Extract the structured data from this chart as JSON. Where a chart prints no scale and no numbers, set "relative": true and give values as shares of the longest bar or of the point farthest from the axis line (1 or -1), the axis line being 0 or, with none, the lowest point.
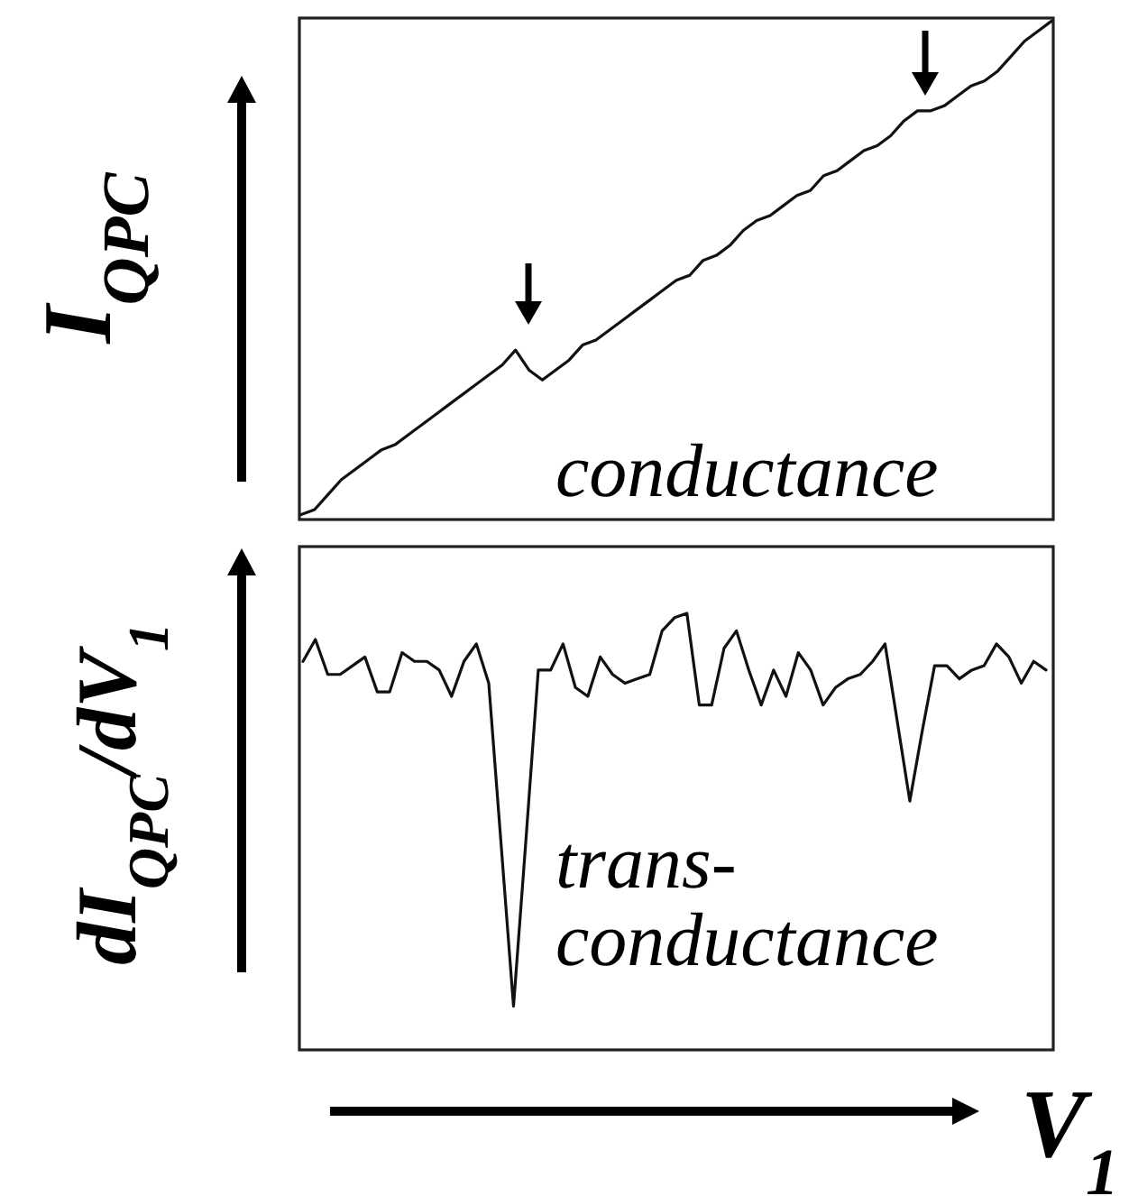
{
  "chart_data": [
    {
      "type": "line",
      "ylabel": "I$_{QPC}$",
      "relative": true,
      "color": "#111111",
      "annotations": [
        "conductance"
      ],
      "categories": [
        null,
        null,
        null,
        null,
        null,
        null,
        null,
        null,
        null,
        null,
        null,
        null,
        null,
        null,
        null,
        null,
        null,
        null,
        null,
        null,
        null,
        null,
        null,
        null,
        null,
        null,
        null,
        null,
        null,
        null,
        null,
        null,
        null,
        null,
        null,
        null,
        null,
        null,
        null,
        null,
        null,
        null,
        null,
        null,
        null,
        null,
        null,
        null,
        null,
        null,
        null,
        null,
        null,
        null,
        null,
        null,
        null
      ],
      "values": [
        0.01,
        0.02,
        0.05,
        0.08,
        0.1,
        0.12,
        0.14,
        0.15,
        0.17,
        0.19,
        0.21,
        0.23,
        0.25,
        0.27,
        0.29,
        0.31,
        0.34,
        0.3,
        0.28,
        0.3,
        0.32,
        0.35,
        0.36,
        0.38,
        0.4,
        0.42,
        0.44,
        0.46,
        0.48,
        0.49,
        0.52,
        0.53,
        0.55,
        0.58,
        0.6,
        0.61,
        0.63,
        0.65,
        0.66,
        0.69,
        0.7,
        0.72,
        0.74,
        0.75,
        0.77,
        0.8,
        0.82,
        0.82,
        0.83,
        0.85,
        0.87,
        0.88,
        0.9,
        0.93,
        0.96,
        0.98,
        1
      ]
    },
    {
      "type": "line",
      "ylabel": "dI$_{QPC}$/dV$_{1}$",
      "xlabel": "V$_{1}$",
      "relative": true,
      "color": "#111111",
      "annotations": [
        "trans-\nconductance"
      ],
      "categories": [
        null,
        null,
        null,
        null,
        null,
        null,
        null,
        null,
        null,
        null,
        null,
        null,
        null,
        null,
        null,
        null,
        null,
        null,
        null,
        null,
        null,
        null,
        null,
        null,
        null,
        null,
        null,
        null,
        null,
        null,
        null,
        null,
        null,
        null,
        null,
        null,
        null,
        null,
        null,
        null,
        null,
        null,
        null,
        null,
        null,
        null,
        null,
        null,
        null,
        null,
        null,
        null,
        null,
        null,
        null,
        null,
        null,
        null,
        null,
        null,
        null
      ],
      "values": [
        0.89,
        0.94,
        0.86,
        0.86,
        0.88,
        0.9,
        0.82,
        0.82,
        0.91,
        0.89,
        0.89,
        0.87,
        0.81,
        0.89,
        0.93,
        0.84,
        0.47,
        0.1,
        0.48,
        0.87,
        0.87,
        0.93,
        0.83,
        0.81,
        0.9,
        0.86,
        0.84,
        0.85,
        0.86,
        0.96,
        0.99,
        1,
        0.79,
        0.79,
        0.92,
        0.96,
        0.87,
        0.79,
        0.87,
        0.81,
        0.91,
        0.87,
        0.79,
        0.83,
        0.85,
        0.86,
        0.89,
        0.93,
        0.75,
        0.57,
        0.73,
        0.88,
        0.88,
        0.85,
        0.87,
        0.88,
        0.93,
        0.9,
        0.84,
        0.89,
        0.87
      ]
    }
  ]
}
